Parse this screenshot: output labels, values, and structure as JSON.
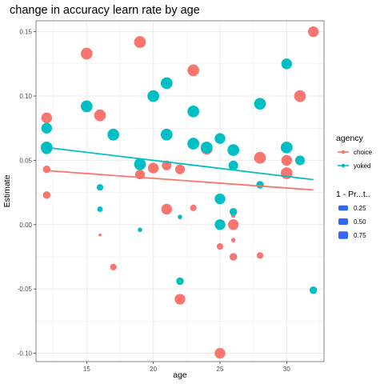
{
  "chart_data": {
    "type": "scatter",
    "title": "change in accuracy learn rate by age",
    "xlabel": "age",
    "ylabel": "Estimate",
    "xlim": [
      11.2,
      32.8
    ],
    "ylim": [
      -0.1065,
      0.1585
    ],
    "x_ticks": [
      15,
      20,
      25,
      30
    ],
    "x_tick_labels": [
      "15",
      "20",
      "25",
      "30"
    ],
    "y_ticks": [
      -0.1,
      -0.05,
      0.0,
      0.05,
      0.1,
      0.15
    ],
    "y_tick_labels": [
      "-0.10",
      "-0.05",
      "0.00",
      "0.05",
      "0.10",
      "0.15"
    ],
    "grid": true,
    "colors": {
      "choice": "#F8766D",
      "yoked": "#00BFC4",
      "size_key": "#3366FF",
      "panel_bg": "#ffffff",
      "grid": "#ebebeb"
    },
    "color_legend": {
      "title": "agency",
      "entries": [
        "choice",
        "yoked"
      ]
    },
    "size_legend": {
      "title": "1 - Pr...t..",
      "entries": [
        0.25,
        0.5,
        0.75
      ],
      "entry_labels": [
        "0.25",
        "0.50",
        "0.75"
      ]
    },
    "trend_lines": [
      {
        "name": "choice",
        "x": [
          12,
          32
        ],
        "y": [
          0.042,
          0.027
        ]
      },
      {
        "name": "yoked",
        "x": [
          12,
          32
        ],
        "y": [
          0.06,
          0.035
        ]
      }
    ],
    "series": [
      {
        "name": "choice",
        "points": [
          {
            "x": 12,
            "y": 0.083,
            "w": 0.8
          },
          {
            "x": 12,
            "y": 0.043,
            "w": 0.5
          },
          {
            "x": 12,
            "y": 0.023,
            "w": 0.5
          },
          {
            "x": 15,
            "y": 0.133,
            "w": 0.9
          },
          {
            "x": 16,
            "y": 0.085,
            "w": 0.9
          },
          {
            "x": 16,
            "y": -0.008,
            "w": 0.05
          },
          {
            "x": 17,
            "y": -0.033,
            "w": 0.4
          },
          {
            "x": 19,
            "y": 0.142,
            "w": 0.9
          },
          {
            "x": 19,
            "y": 0.039,
            "w": 0.7
          },
          {
            "x": 20,
            "y": 0.044,
            "w": 0.8
          },
          {
            "x": 21,
            "y": 0.046,
            "w": 0.7
          },
          {
            "x": 21,
            "y": 0.012,
            "w": 0.8
          },
          {
            "x": 22,
            "y": 0.043,
            "w": 0.7
          },
          {
            "x": 22,
            "y": -0.058,
            "w": 0.8
          },
          {
            "x": 23,
            "y": 0.12,
            "w": 0.9
          },
          {
            "x": 23,
            "y": 0.013,
            "w": 0.4
          },
          {
            "x": 24,
            "y": 0.059,
            "w": 0.9
          },
          {
            "x": 25,
            "y": -0.017,
            "w": 0.4
          },
          {
            "x": 25,
            "y": -0.1,
            "w": 0.8
          },
          {
            "x": 26,
            "y": 0.0,
            "w": 0.8
          },
          {
            "x": 26,
            "y": -0.012,
            "w": 0.2
          },
          {
            "x": 26,
            "y": -0.025,
            "w": 0.5
          },
          {
            "x": 26,
            "y": 0.007,
            "w": 0.2
          },
          {
            "x": 28,
            "y": 0.052,
            "w": 0.9
          },
          {
            "x": 28,
            "y": -0.024,
            "w": 0.4
          },
          {
            "x": 30,
            "y": 0.05,
            "w": 0.8
          },
          {
            "x": 30,
            "y": 0.04,
            "w": 0.9
          },
          {
            "x": 31,
            "y": 0.1,
            "w": 0.9
          },
          {
            "x": 32,
            "y": 0.15,
            "w": 0.8
          }
        ]
      },
      {
        "name": "yoked",
        "points": [
          {
            "x": 12,
            "y": 0.075,
            "w": 0.8
          },
          {
            "x": 12,
            "y": 0.06,
            "w": 0.9
          },
          {
            "x": 12,
            "y": 0.059,
            "w": 0.8
          },
          {
            "x": 15,
            "y": 0.092,
            "w": 0.9
          },
          {
            "x": 16,
            "y": 0.029,
            "w": 0.4
          },
          {
            "x": 16,
            "y": 0.012,
            "w": 0.3
          },
          {
            "x": 17,
            "y": 0.07,
            "w": 0.9
          },
          {
            "x": 19,
            "y": 0.047,
            "w": 0.9
          },
          {
            "x": 19,
            "y": -0.004,
            "w": 0.2
          },
          {
            "x": 20,
            "y": 0.1,
            "w": 0.9
          },
          {
            "x": 21,
            "y": 0.11,
            "w": 0.9
          },
          {
            "x": 21,
            "y": 0.07,
            "w": 0.9
          },
          {
            "x": 22,
            "y": 0.006,
            "w": 0.2
          },
          {
            "x": 22,
            "y": -0.044,
            "w": 0.5
          },
          {
            "x": 23,
            "y": 0.088,
            "w": 0.9
          },
          {
            "x": 23,
            "y": 0.063,
            "w": 0.9
          },
          {
            "x": 24,
            "y": 0.06,
            "w": 0.9
          },
          {
            "x": 25,
            "y": 0.067,
            "w": 0.8
          },
          {
            "x": 25,
            "y": 0.02,
            "w": 0.8
          },
          {
            "x": 25,
            "y": 0.0,
            "w": 0.8
          },
          {
            "x": 26,
            "y": 0.058,
            "w": 0.9
          },
          {
            "x": 26,
            "y": 0.046,
            "w": 0.7
          },
          {
            "x": 26,
            "y": 0.01,
            "w": 0.5
          },
          {
            "x": 28,
            "y": 0.094,
            "w": 0.9
          },
          {
            "x": 28,
            "y": 0.031,
            "w": 0.5
          },
          {
            "x": 30,
            "y": 0.125,
            "w": 0.8
          },
          {
            "x": 30,
            "y": 0.06,
            "w": 0.9
          },
          {
            "x": 31,
            "y": 0.05,
            "w": 0.7
          },
          {
            "x": 32,
            "y": -0.051,
            "w": 0.5
          }
        ]
      }
    ]
  }
}
